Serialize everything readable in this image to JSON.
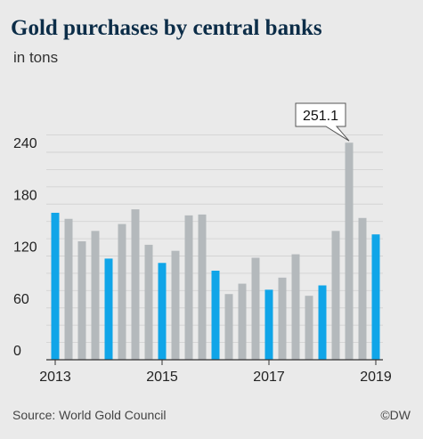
{
  "header": {
    "title": "Gold purchases by central banks",
    "subtitle": "in tons"
  },
  "footer": {
    "source": "Source: World Gold Council",
    "credit": "©DW"
  },
  "colors": {
    "highlight": "#10a5e8",
    "bar": "#b4b9bc",
    "grid": "#d3d3d3",
    "axis": "#333333",
    "title": "#0c2d48",
    "background": "#eaeaea"
  },
  "chart_data": {
    "type": "bar",
    "title": "Gold purchases by central banks",
    "subtitle": "in tons",
    "xlabel": "",
    "ylabel": "",
    "ylim": [
      0,
      265
    ],
    "yticks": [
      0,
      60,
      120,
      180,
      240
    ],
    "xticks": [
      "2013",
      "2015",
      "2017",
      "2019"
    ],
    "grid": true,
    "callout": {
      "label": "251.1",
      "bar_index": 22
    },
    "bars": [
      {
        "value": 170,
        "highlight": true
      },
      {
        "value": 163,
        "highlight": false
      },
      {
        "value": 137,
        "highlight": false
      },
      {
        "value": 149,
        "highlight": false
      },
      {
        "value": 117,
        "highlight": true
      },
      {
        "value": 157,
        "highlight": false
      },
      {
        "value": 174,
        "highlight": false
      },
      {
        "value": 133,
        "highlight": false
      },
      {
        "value": 112,
        "highlight": true
      },
      {
        "value": 126,
        "highlight": false
      },
      {
        "value": 167,
        "highlight": false
      },
      {
        "value": 168,
        "highlight": false
      },
      {
        "value": 103,
        "highlight": true
      },
      {
        "value": 76,
        "highlight": false
      },
      {
        "value": 88,
        "highlight": false
      },
      {
        "value": 118,
        "highlight": false
      },
      {
        "value": 81,
        "highlight": true
      },
      {
        "value": 95,
        "highlight": false
      },
      {
        "value": 122,
        "highlight": false
      },
      {
        "value": 74,
        "highlight": false
      },
      {
        "value": 86,
        "highlight": true
      },
      {
        "value": 149,
        "highlight": false
      },
      {
        "value": 251.1,
        "highlight": false
      },
      {
        "value": 164,
        "highlight": false
      },
      {
        "value": 145,
        "highlight": true
      }
    ]
  }
}
